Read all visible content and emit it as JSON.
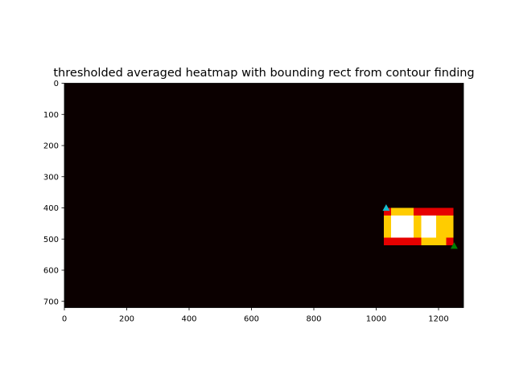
{
  "chart_data": {
    "type": "heatmap",
    "title": "thresholded averaged heatmap with bounding rect from contour finding",
    "xlabel": "",
    "ylabel": "",
    "image_width": 1280,
    "image_height": 720,
    "xlim": [
      0,
      1280
    ],
    "ylim": [
      720,
      0
    ],
    "xticks": [
      0,
      200,
      400,
      600,
      800,
      1000,
      1200
    ],
    "yticks": [
      0,
      100,
      200,
      300,
      400,
      500,
      600,
      700
    ],
    "grid": false,
    "background_color": "#0b0000",
    "heat_cells": [
      {
        "x0": 1024,
        "y0": 400,
        "x1": 1248,
        "y1": 424,
        "color": "#e60000"
      },
      {
        "x0": 1024,
        "y0": 496,
        "x1": 1248,
        "y1": 520,
        "color": "#e60000"
      },
      {
        "x0": 1024,
        "y0": 424,
        "x1": 1248,
        "y1": 496,
        "color": "#ffcc00"
      },
      {
        "x0": 1048,
        "y0": 400,
        "x1": 1120,
        "y1": 424,
        "color": "#ffcc00"
      },
      {
        "x0": 1144,
        "y0": 496,
        "x1": 1224,
        "y1": 520,
        "color": "#ffcc00"
      },
      {
        "x0": 1048,
        "y0": 424,
        "x1": 1120,
        "y1": 496,
        "color": "#ffffff"
      },
      {
        "x0": 1144,
        "y0": 424,
        "x1": 1192,
        "y1": 496,
        "color": "#ffffff"
      }
    ],
    "markers": [
      {
        "x": 1032,
        "y": 400,
        "shape": "triangle-up",
        "color": "#17becf"
      },
      {
        "x": 1250,
        "y": 522,
        "shape": "triangle-up",
        "color": "#008000"
      }
    ]
  }
}
